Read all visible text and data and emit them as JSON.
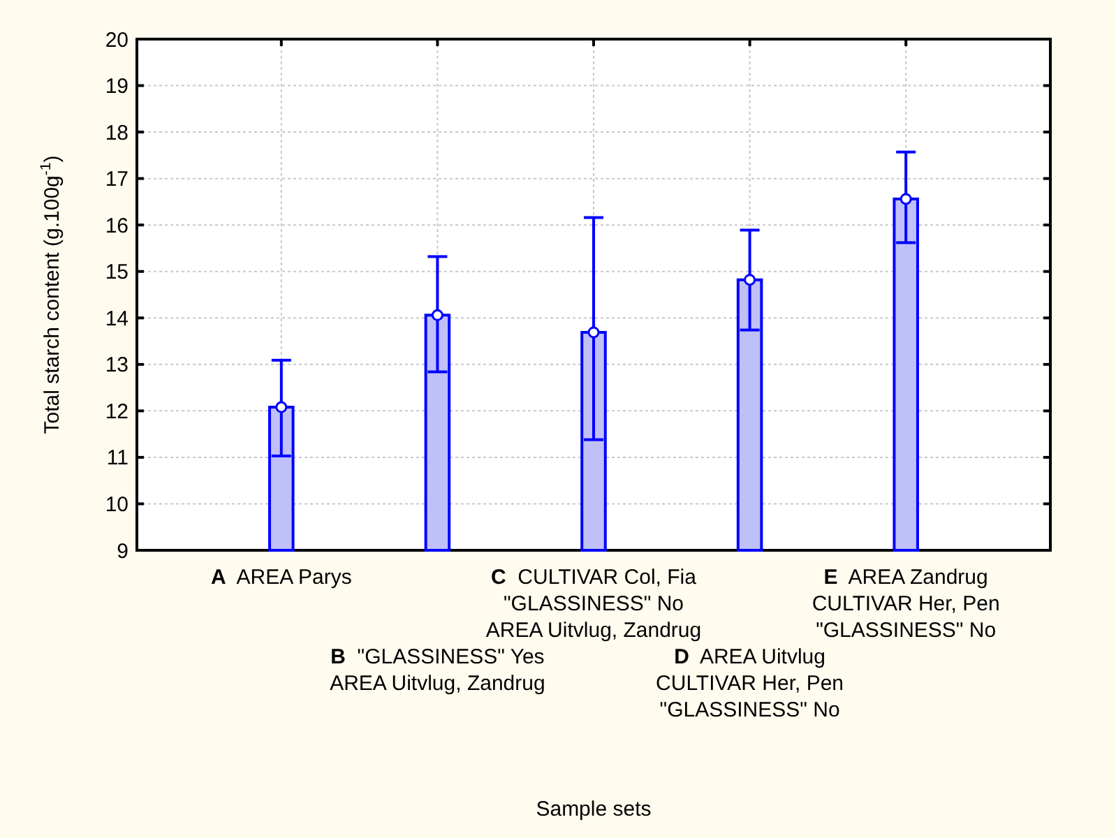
{
  "chart_data": {
    "type": "bar",
    "xlabel": "Sample sets",
    "ylabel": "Total starch content (g.100g$^{-1}$)",
    "categories": [
      "A AREA Parys",
      "B \"GLASSINESS\" Yes\nAREA Uitvlug, Zandrug",
      "C CULTIVAR Col, Fia\n\"GLASSINESS\" No\nAREA Uitvlug, Zandrug",
      "D AREA Uitvlug\nCULTIVAR Her, Pen\n\"GLASSINESS\" No",
      "E AREA Zandrug\nCULTIVAR Her, Pen\n\"GLASSINESS\" No"
    ],
    "series": [
      {
        "color": "#c0c0f8",
        "values": [
          12.08,
          14.06,
          13.69,
          14.82,
          16.56
        ],
        "errors": [
          [
            11.03,
            13.09
          ],
          [
            12.84,
            15.32
          ],
          [
            11.38,
            16.16
          ],
          [
            13.74,
            15.89
          ],
          [
            15.62,
            17.57
          ]
        ]
      },
      {
        "type": "scatter",
        "color": "#ffffff",
        "marker": "circle",
        "x": [
          "A AREA Parys",
          "B \"GLASSINESS\" Yes\nAREA Uitvlug, Zandrug",
          "C CULTIVAR Col, Fia\n\"GLASSINESS\" No\nAREA Uitvlug, Zandrug",
          "D AREA Uitvlug\nCULTIVAR Her, Pen\n\"GLASSINESS\" No",
          "E AREA Zandrug\nCULTIVAR Her, Pen\n\"GLASSINESS\" No"
        ],
        "values": [
          12.08,
          14.06,
          13.69,
          14.82,
          16.56
        ]
      }
    ],
    "ylim": [
      9,
      20
    ],
    "yticks": [
      9,
      10,
      11,
      12,
      13,
      14,
      15,
      16,
      17,
      18,
      19,
      20
    ],
    "grid": true
  }
}
